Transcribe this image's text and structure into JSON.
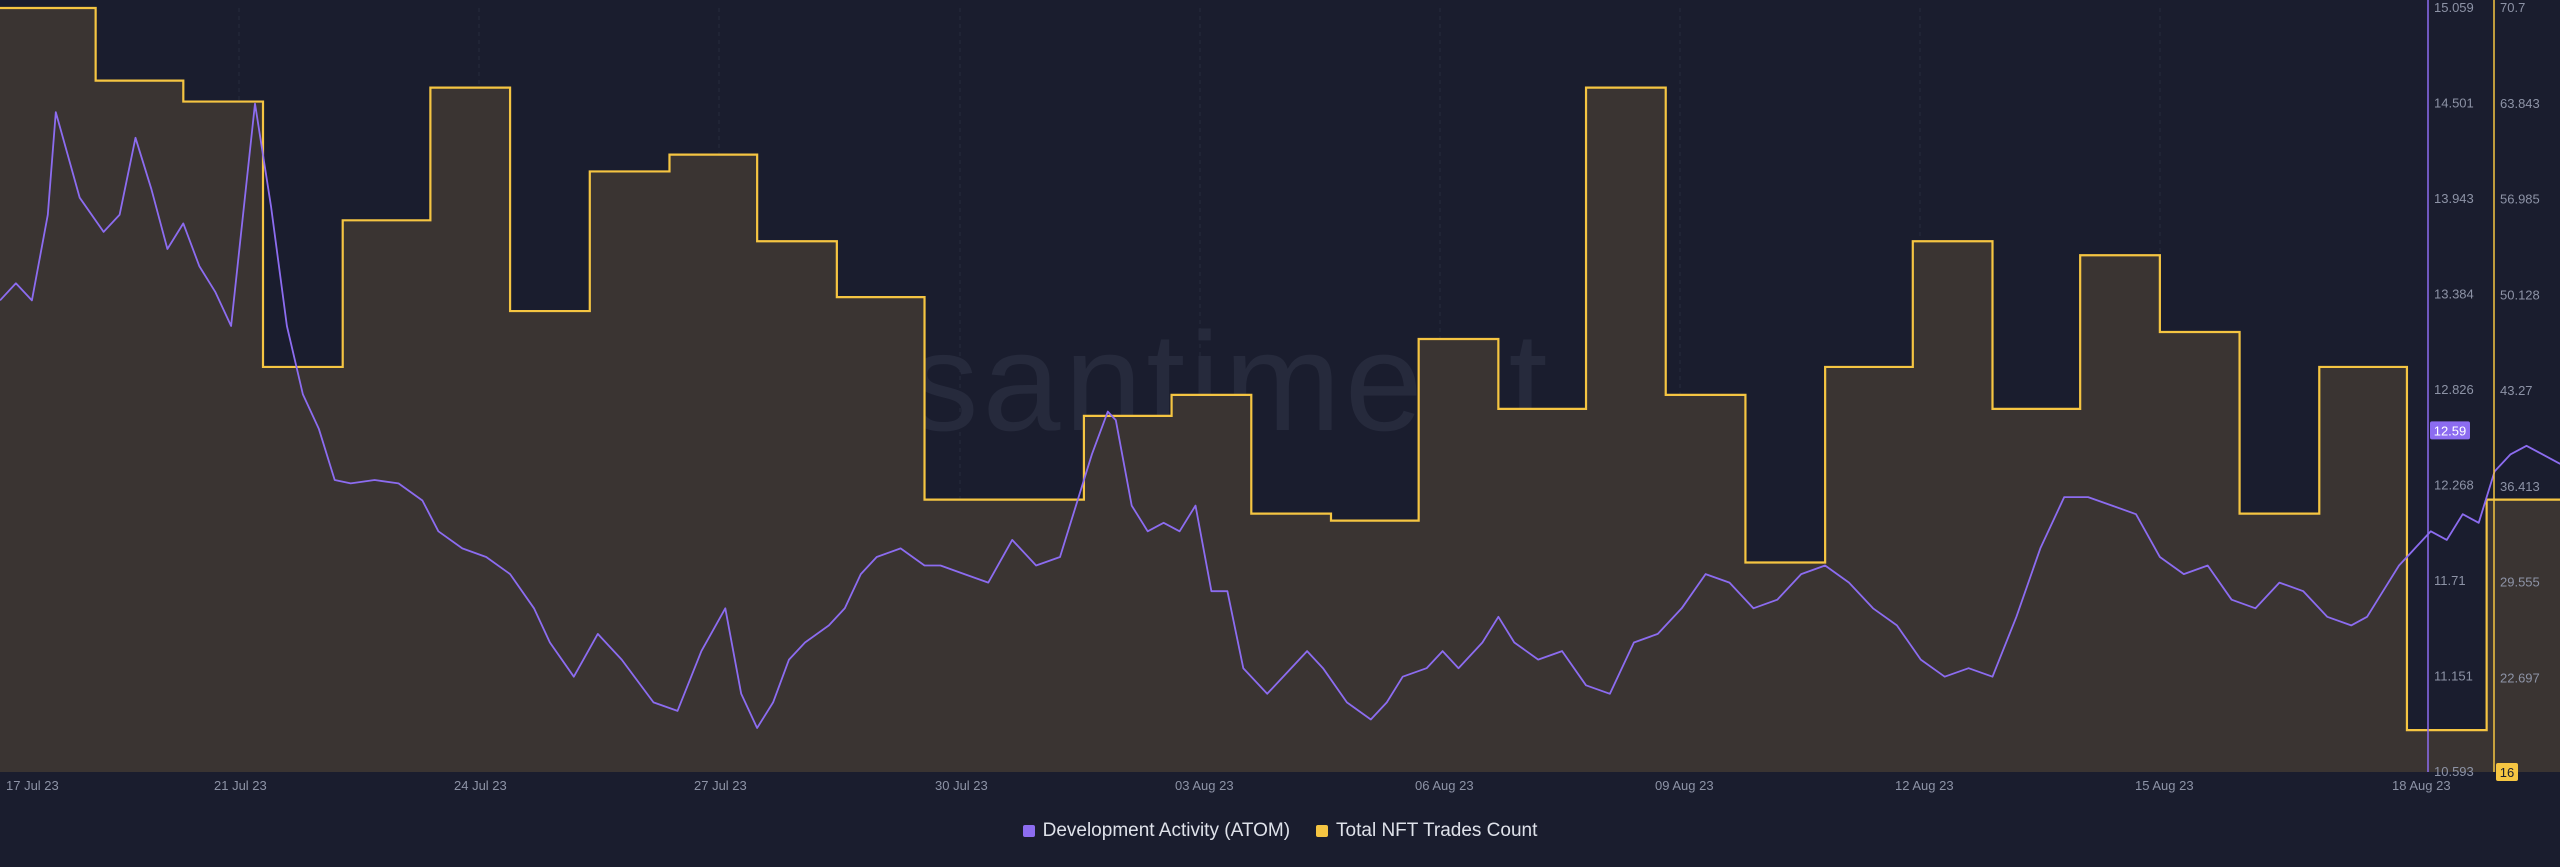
{
  "watermark": ".santiment.",
  "chart_data": {
    "type": "line",
    "x_tick_labels": [
      "17 Jul 23",
      "21 Jul 23",
      "24 Jul 23",
      "27 Jul 23",
      "30 Jul 23",
      "03 Aug 23",
      "06 Aug 23",
      "09 Aug 23",
      "12 Aug 23",
      "15 Aug 23",
      "18 Aug 23"
    ],
    "x_range_days": [
      0,
      32
    ],
    "legend_placement": "bottom-center",
    "grid": "vertical-dashed",
    "series": [
      {
        "name": "Development Activity (ATOM)",
        "axis": "left-inner",
        "style": "line",
        "color": "#8c6cf0",
        "ylim": [
          10.593,
          15.059
        ],
        "y_tick_labels": [
          "15.059",
          "14.501",
          "13.943",
          "13.384",
          "12.826",
          "12.268",
          "11.71",
          "11.151",
          "10.593"
        ],
        "current_value_label": "12.59",
        "points": [
          [
            0.0,
            13.35
          ],
          [
            0.2,
            13.45
          ],
          [
            0.4,
            13.35
          ],
          [
            0.6,
            13.85
          ],
          [
            0.7,
            14.45
          ],
          [
            1.0,
            13.95
          ],
          [
            1.3,
            13.75
          ],
          [
            1.5,
            13.85
          ],
          [
            1.7,
            14.3
          ],
          [
            1.9,
            14.0
          ],
          [
            2.1,
            13.65
          ],
          [
            2.3,
            13.8
          ],
          [
            2.5,
            13.55
          ],
          [
            2.7,
            13.4
          ],
          [
            2.9,
            13.2
          ],
          [
            3.2,
            14.5
          ],
          [
            3.4,
            13.9
          ],
          [
            3.6,
            13.2
          ],
          [
            3.8,
            12.8
          ],
          [
            4.0,
            12.6
          ],
          [
            4.2,
            12.3
          ],
          [
            4.4,
            12.28
          ],
          [
            4.7,
            12.3
          ],
          [
            5.0,
            12.28
          ],
          [
            5.3,
            12.18
          ],
          [
            5.5,
            12.0
          ],
          [
            5.8,
            11.9
          ],
          [
            6.1,
            11.85
          ],
          [
            6.4,
            11.75
          ],
          [
            6.7,
            11.55
          ],
          [
            6.9,
            11.35
          ],
          [
            7.2,
            11.15
          ],
          [
            7.5,
            11.4
          ],
          [
            7.8,
            11.25
          ],
          [
            8.2,
            11.0
          ],
          [
            8.5,
            10.95
          ],
          [
            8.8,
            11.3
          ],
          [
            9.1,
            11.55
          ],
          [
            9.3,
            11.05
          ],
          [
            9.5,
            10.85
          ],
          [
            9.7,
            11.0
          ],
          [
            9.9,
            11.25
          ],
          [
            10.1,
            11.35
          ],
          [
            10.4,
            11.45
          ],
          [
            10.6,
            11.55
          ],
          [
            10.8,
            11.75
          ],
          [
            11.0,
            11.85
          ],
          [
            11.3,
            11.9
          ],
          [
            11.6,
            11.8
          ],
          [
            11.8,
            11.8
          ],
          [
            12.1,
            11.75
          ],
          [
            12.4,
            11.7
          ],
          [
            12.7,
            11.95
          ],
          [
            13.0,
            11.8
          ],
          [
            13.3,
            11.85
          ],
          [
            13.7,
            12.45
          ],
          [
            13.9,
            12.7
          ],
          [
            14.0,
            12.65
          ],
          [
            14.2,
            12.15
          ],
          [
            14.4,
            12.0
          ],
          [
            14.6,
            12.05
          ],
          [
            14.8,
            12.0
          ],
          [
            15.0,
            12.15
          ],
          [
            15.2,
            11.65
          ],
          [
            15.4,
            11.65
          ],
          [
            15.6,
            11.2
          ],
          [
            15.9,
            11.05
          ],
          [
            16.2,
            11.2
          ],
          [
            16.4,
            11.3
          ],
          [
            16.6,
            11.2
          ],
          [
            16.9,
            11.0
          ],
          [
            17.2,
            10.9
          ],
          [
            17.4,
            11.0
          ],
          [
            17.6,
            11.15
          ],
          [
            17.9,
            11.2
          ],
          [
            18.1,
            11.3
          ],
          [
            18.3,
            11.2
          ],
          [
            18.6,
            11.35
          ],
          [
            18.8,
            11.5
          ],
          [
            19.0,
            11.35
          ],
          [
            19.3,
            11.25
          ],
          [
            19.6,
            11.3
          ],
          [
            19.9,
            11.1
          ],
          [
            20.2,
            11.05
          ],
          [
            20.5,
            11.35
          ],
          [
            20.8,
            11.4
          ],
          [
            21.1,
            11.55
          ],
          [
            21.4,
            11.75
          ],
          [
            21.7,
            11.7
          ],
          [
            22.0,
            11.55
          ],
          [
            22.3,
            11.6
          ],
          [
            22.6,
            11.75
          ],
          [
            22.9,
            11.8
          ],
          [
            23.2,
            11.7
          ],
          [
            23.5,
            11.55
          ],
          [
            23.8,
            11.45
          ],
          [
            24.1,
            11.25
          ],
          [
            24.4,
            11.15
          ],
          [
            24.7,
            11.2
          ],
          [
            25.0,
            11.15
          ],
          [
            25.3,
            11.5
          ],
          [
            25.6,
            11.9
          ],
          [
            25.9,
            12.2
          ],
          [
            26.2,
            12.2
          ],
          [
            26.5,
            12.15
          ],
          [
            26.8,
            12.1
          ],
          [
            27.1,
            11.85
          ],
          [
            27.4,
            11.75
          ],
          [
            27.7,
            11.8
          ],
          [
            28.0,
            11.6
          ],
          [
            28.3,
            11.55
          ],
          [
            28.6,
            11.7
          ],
          [
            28.9,
            11.65
          ],
          [
            29.2,
            11.5
          ],
          [
            29.5,
            11.45
          ],
          [
            29.7,
            11.5
          ],
          [
            29.9,
            11.65
          ],
          [
            30.1,
            11.8
          ],
          [
            30.3,
            11.9
          ],
          [
            30.5,
            12.0
          ],
          [
            30.7,
            11.95
          ],
          [
            30.9,
            12.1
          ],
          [
            31.1,
            12.05
          ],
          [
            31.3,
            12.35
          ],
          [
            31.5,
            12.45
          ],
          [
            31.7,
            12.5
          ],
          [
            31.9,
            12.45
          ],
          [
            32.1,
            12.4
          ],
          [
            32.3,
            12.35
          ],
          [
            32.5,
            12.5
          ],
          [
            32.7,
            12.4
          ],
          [
            32.9,
            12.3
          ],
          [
            33.1,
            12.35
          ],
          [
            33.3,
            12.59
          ]
        ]
      },
      {
        "name": "Total NFT Trades Count",
        "axis": "right-outer",
        "style": "step-area",
        "color": "#f5c542",
        "fill": "#3a3432",
        "ylim": [
          16,
          70.7
        ],
        "y_tick_labels": [
          "70.7",
          "63.843",
          "56.985",
          "50.128",
          "43.27",
          "36.413",
          "29.555",
          "22.697",
          "16"
        ],
        "current_value_label": "16",
        "steps": [
          [
            0.0,
            70.7
          ],
          [
            1.2,
            65.5
          ],
          [
            2.3,
            64.0
          ],
          [
            3.3,
            45.0
          ],
          [
            4.3,
            55.5
          ],
          [
            5.4,
            65.0
          ],
          [
            6.4,
            49.0
          ],
          [
            7.4,
            59.0
          ],
          [
            8.4,
            60.2
          ],
          [
            9.5,
            54.0
          ],
          [
            10.5,
            50.0
          ],
          [
            11.6,
            35.5
          ],
          [
            13.6,
            41.5
          ],
          [
            14.7,
            43.0
          ],
          [
            15.7,
            34.5
          ],
          [
            16.7,
            34.0
          ],
          [
            17.8,
            47.0
          ],
          [
            18.8,
            42.0
          ],
          [
            19.9,
            65.0
          ],
          [
            20.9,
            43.0
          ],
          [
            21.9,
            31.0
          ],
          [
            22.9,
            45.0
          ],
          [
            24.0,
            54.0
          ],
          [
            25.0,
            42.0
          ],
          [
            26.1,
            53.0
          ],
          [
            27.1,
            47.5
          ],
          [
            28.1,
            34.5
          ],
          [
            29.1,
            45.0
          ],
          [
            30.2,
            19.0
          ],
          [
            31.2,
            35.5
          ],
          [
            32.2,
            16.0
          ],
          [
            33.3,
            16.0
          ]
        ]
      }
    ]
  }
}
